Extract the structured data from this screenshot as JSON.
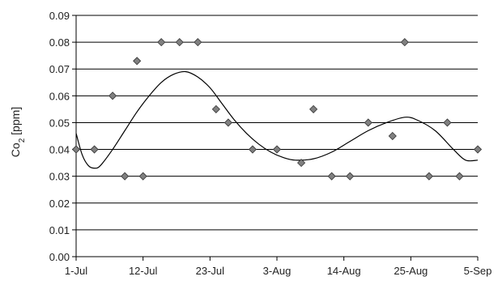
{
  "chart_data": {
    "type": "scatter",
    "title": "",
    "xlabel": "",
    "ylabel": "Co",
    "ylabel_subscript": "2",
    "ylabel_suffix": " [ppm]",
    "ylim": [
      0,
      0.09
    ],
    "yticks": [
      "0.00",
      "0.01",
      "0.02",
      "0.03",
      "0.04",
      "0.05",
      "0.06",
      "0.07",
      "0.08",
      "0.09"
    ],
    "xlim": [
      "1-Jul",
      "5-Sep"
    ],
    "xticks": [
      "1-Jul",
      "12-Jul",
      "23-Jul",
      "3-Aug",
      "14-Aug",
      "25-Aug",
      "5-Sep"
    ],
    "grid": "horizontal",
    "marker_color": "#808080",
    "marker_edge_color": "#333333",
    "line_color": "#000000",
    "series": [
      {
        "type": "scatter",
        "points": [
          {
            "x": "1-Jul",
            "y": 0.04
          },
          {
            "x": "4-Jul",
            "y": 0.04
          },
          {
            "x": "7-Jul",
            "y": 0.06
          },
          {
            "x": "9-Jul",
            "y": 0.03
          },
          {
            "x": "11-Jul",
            "y": 0.073
          },
          {
            "x": "12-Jul",
            "y": 0.03
          },
          {
            "x": "15-Jul",
            "y": 0.08
          },
          {
            "x": "18-Jul",
            "y": 0.08
          },
          {
            "x": "21-Jul",
            "y": 0.08
          },
          {
            "x": "24-Jul",
            "y": 0.055
          },
          {
            "x": "26-Jul",
            "y": 0.05
          },
          {
            "x": "30-Jul",
            "y": 0.04
          },
          {
            "x": "3-Aug",
            "y": 0.04
          },
          {
            "x": "7-Aug",
            "y": 0.035
          },
          {
            "x": "9-Aug",
            "y": 0.055
          },
          {
            "x": "12-Aug",
            "y": 0.03
          },
          {
            "x": "15-Aug",
            "y": 0.03
          },
          {
            "x": "18-Aug",
            "y": 0.05
          },
          {
            "x": "22-Aug",
            "y": 0.045
          },
          {
            "x": "24-Aug",
            "y": 0.08
          },
          {
            "x": "28-Aug",
            "y": 0.03
          },
          {
            "x": "31-Aug",
            "y": 0.05
          },
          {
            "x": "2-Sep",
            "y": 0.03
          },
          {
            "x": "5-Sep",
            "y": 0.04
          }
        ]
      },
      {
        "type": "line",
        "smooth": true,
        "points": [
          {
            "x": "1-Jul",
            "y": 0.046
          },
          {
            "x": "2-Jul",
            "y": 0.038
          },
          {
            "x": "3-Jul",
            "y": 0.034
          },
          {
            "x": "4-Jul",
            "y": 0.033
          },
          {
            "x": "5-Jul",
            "y": 0.034
          },
          {
            "x": "7-Jul",
            "y": 0.04
          },
          {
            "x": "9-Jul",
            "y": 0.047
          },
          {
            "x": "11-Jul",
            "y": 0.054
          },
          {
            "x": "13-Jul",
            "y": 0.06
          },
          {
            "x": "15-Jul",
            "y": 0.065
          },
          {
            "x": "17-Jul",
            "y": 0.068
          },
          {
            "x": "19-Jul",
            "y": 0.069
          },
          {
            "x": "21-Jul",
            "y": 0.067
          },
          {
            "x": "23-Jul",
            "y": 0.063
          },
          {
            "x": "25-Jul",
            "y": 0.057
          },
          {
            "x": "27-Jul",
            "y": 0.051
          },
          {
            "x": "29-Jul",
            "y": 0.046
          },
          {
            "x": "31-Jul",
            "y": 0.042
          },
          {
            "x": "2-Aug",
            "y": 0.039
          },
          {
            "x": "4-Aug",
            "y": 0.037
          },
          {
            "x": "6-Aug",
            "y": 0.036
          },
          {
            "x": "9-Aug",
            "y": 0.0365
          },
          {
            "x": "12-Aug",
            "y": 0.039
          },
          {
            "x": "15-Aug",
            "y": 0.043
          },
          {
            "x": "18-Aug",
            "y": 0.047
          },
          {
            "x": "21-Aug",
            "y": 0.05
          },
          {
            "x": "24-Aug",
            "y": 0.052
          },
          {
            "x": "26-Aug",
            "y": 0.051
          },
          {
            "x": "29-Aug",
            "y": 0.047
          },
          {
            "x": "1-Sep",
            "y": 0.04
          },
          {
            "x": "3-Sep",
            "y": 0.036
          },
          {
            "x": "5-Sep",
            "y": 0.036
          }
        ]
      }
    ]
  }
}
